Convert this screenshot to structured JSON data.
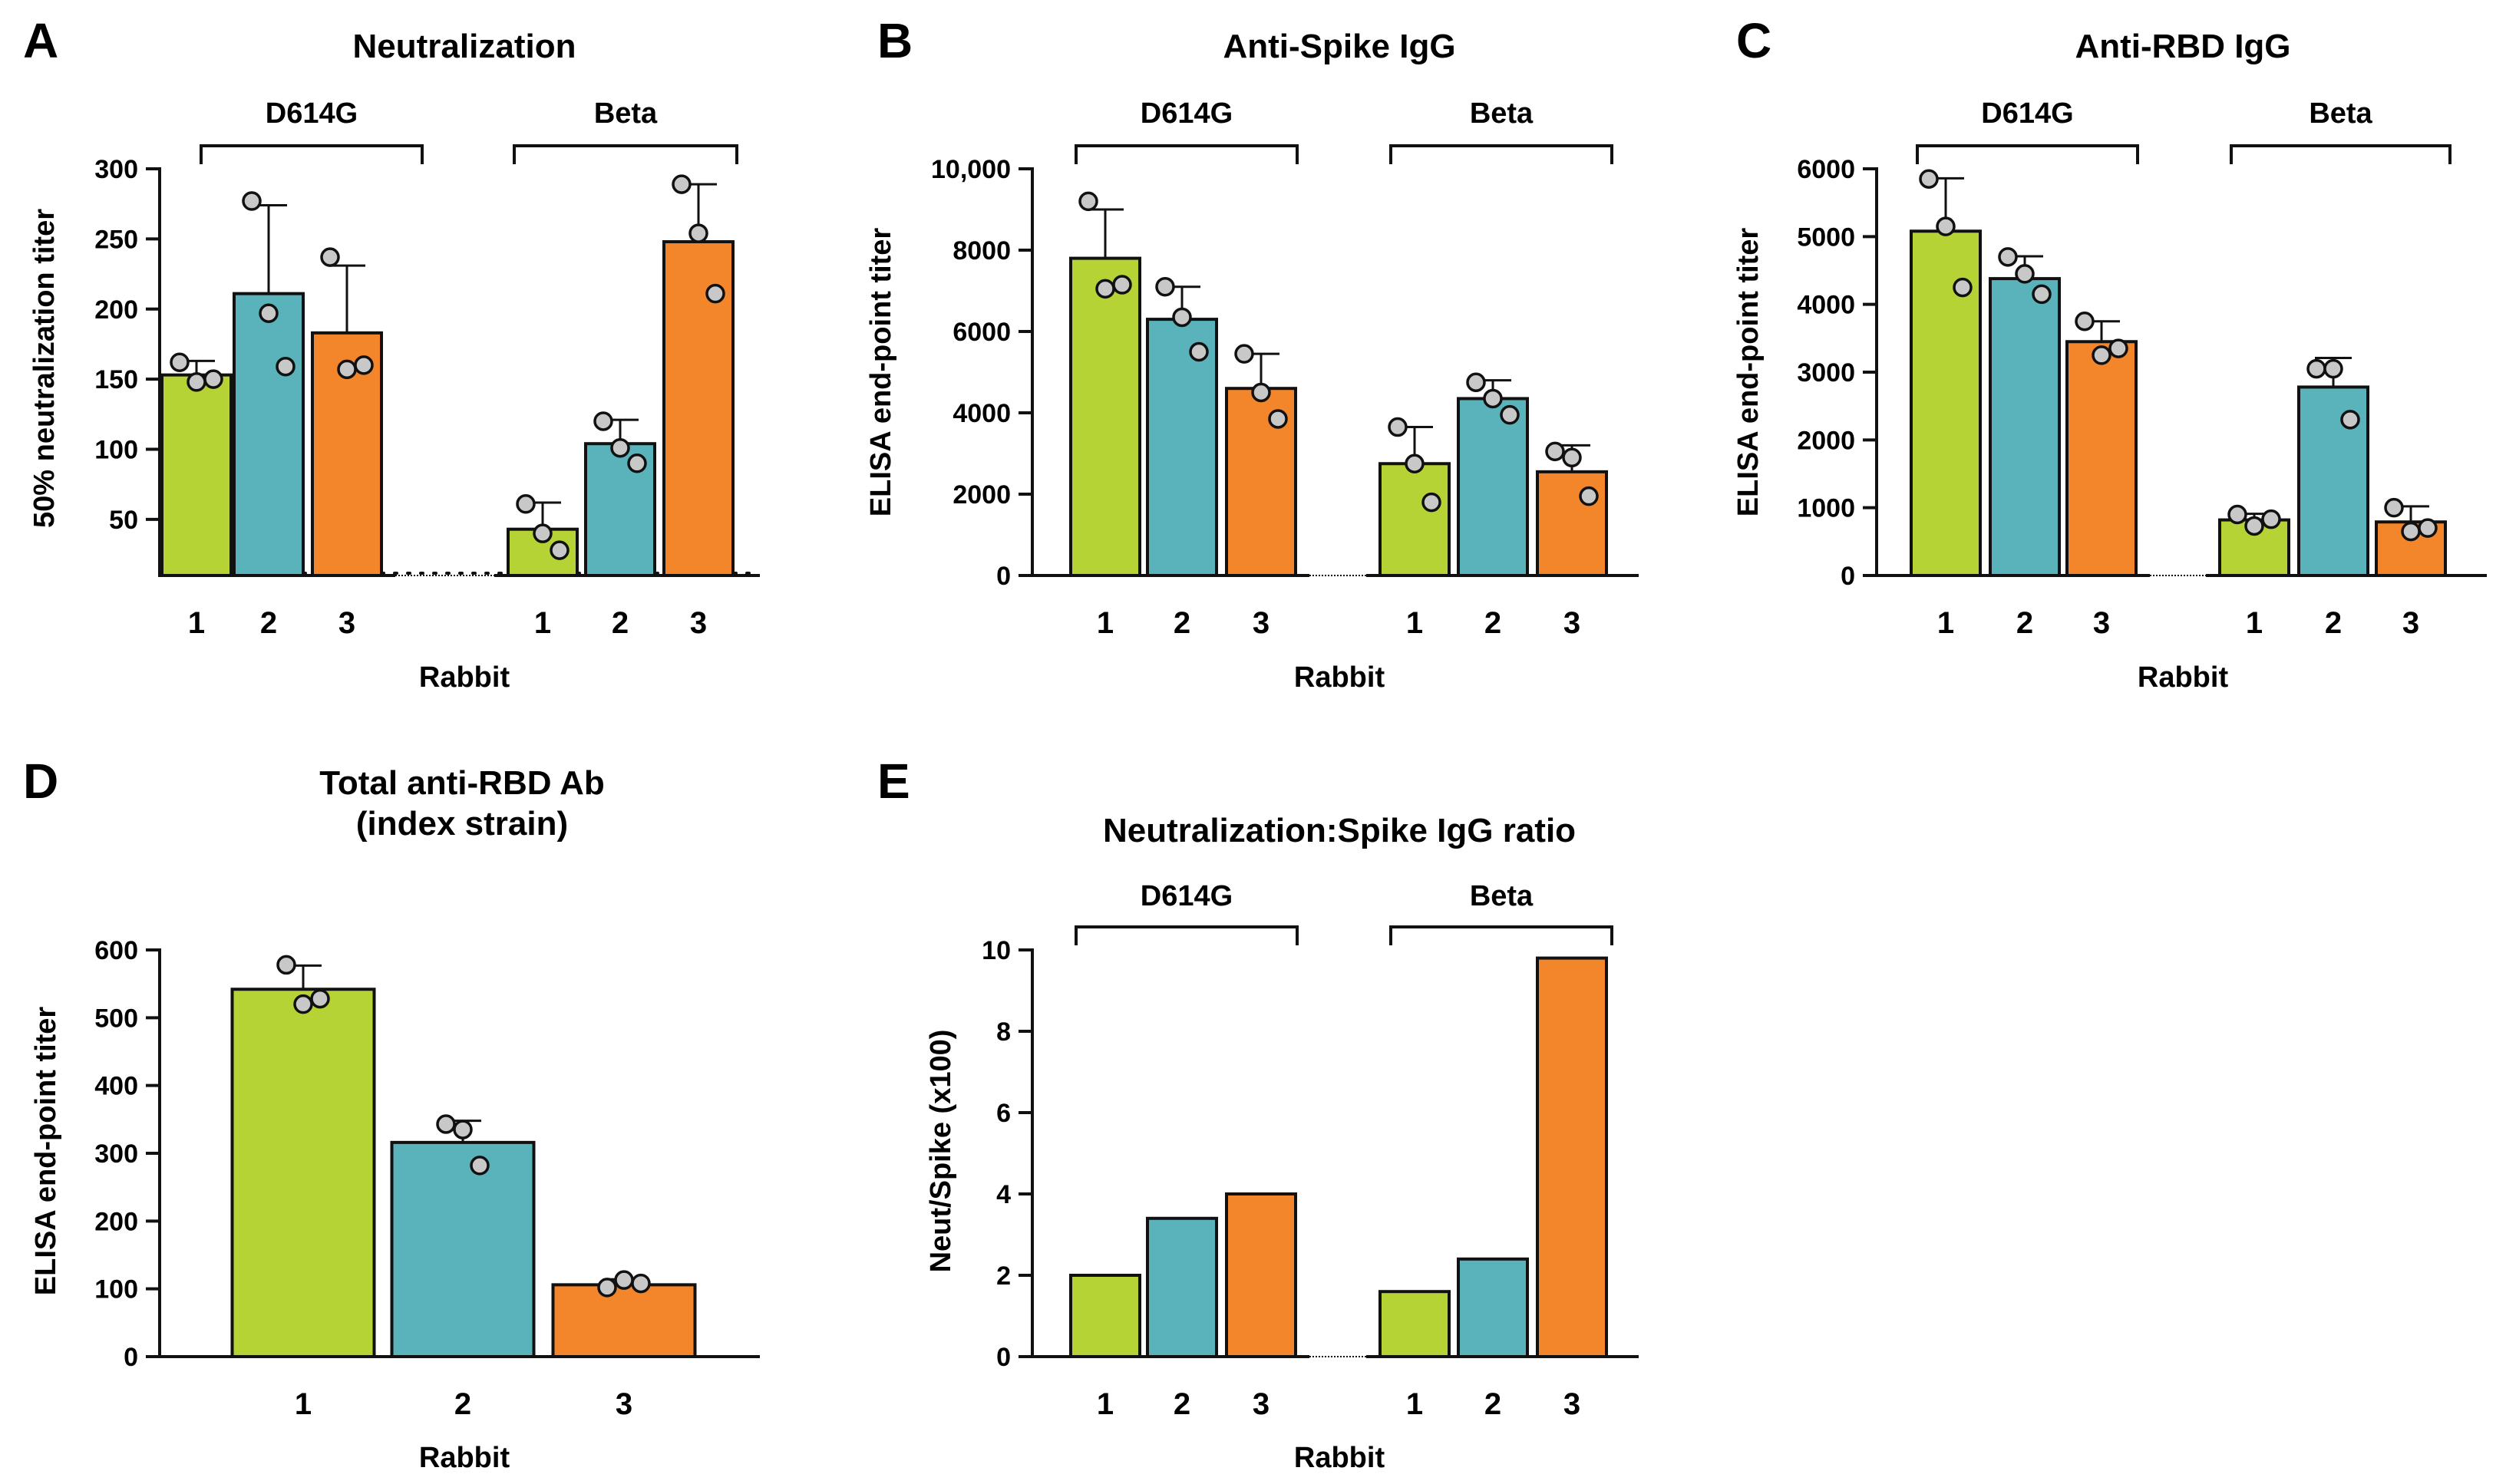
{
  "colors": {
    "rabbit1": "#b5d334",
    "rabbit2": "#5ab3bb",
    "rabbit3": "#f3862a",
    "dot": "#c8c8c8",
    "stroke": "#111111"
  },
  "chart_data": [
    {
      "panel": "A",
      "type": "bar",
      "title": "Neutralization",
      "xlabel": "Rabbit",
      "ylabel": "50% neutralization titer",
      "ylim": [
        10,
        300
      ],
      "yticks": [
        50,
        100,
        150,
        200,
        250,
        300
      ],
      "ytick_labels": [
        "50",
        "100",
        "150",
        "200",
        "250",
        "300"
      ],
      "dotted_line": 10,
      "groups": [
        "D614G",
        "Beta"
      ],
      "categories": [
        "1",
        "2",
        "3"
      ],
      "series": [
        {
          "group": "D614G",
          "bars": [
            {
              "rabbit": "1",
              "mean": 153,
              "err": 10,
              "points": [
                162,
                148,
                150
              ]
            },
            {
              "rabbit": "2",
              "mean": 211,
              "err": 63,
              "points": [
                277,
                197,
                159
              ]
            },
            {
              "rabbit": "3",
              "mean": 183,
              "err": 48,
              "points": [
                237,
                157,
                160
              ]
            }
          ]
        },
        {
          "group": "Beta",
          "bars": [
            {
              "rabbit": "1",
              "mean": 43,
              "err": 19,
              "points": [
                61,
                40,
                28
              ]
            },
            {
              "rabbit": "2",
              "mean": 104,
              "err": 17,
              "points": [
                120,
                101,
                90
              ]
            },
            {
              "rabbit": "3",
              "mean": 248,
              "err": 41,
              "points": [
                289,
                254,
                211
              ]
            }
          ]
        }
      ]
    },
    {
      "panel": "B",
      "type": "bar",
      "title": "Anti-Spike IgG",
      "xlabel": "Rabbit",
      "ylabel": "ELISA end-point titer",
      "ylim": [
        0,
        10000
      ],
      "yticks": [
        0,
        2000,
        4000,
        6000,
        8000,
        10000
      ],
      "ytick_labels": [
        "0",
        "2000",
        "4000",
        "6000",
        "8000",
        "10,000"
      ],
      "groups": [
        "D614G",
        "Beta"
      ],
      "categories": [
        "1",
        "2",
        "3"
      ],
      "series": [
        {
          "group": "D614G",
          "bars": [
            {
              "rabbit": "1",
              "mean": 7800,
              "err": 1200,
              "points": [
                9200,
                7050,
                7150
              ]
            },
            {
              "rabbit": "2",
              "mean": 6300,
              "err": 800,
              "points": [
                7100,
                6350,
                5500
              ]
            },
            {
              "rabbit": "3",
              "mean": 4600,
              "err": 850,
              "points": [
                5450,
                4500,
                3850
              ]
            }
          ]
        },
        {
          "group": "Beta",
          "bars": [
            {
              "rabbit": "1",
              "mean": 2750,
              "err": 900,
              "points": [
                3650,
                2750,
                1800
              ]
            },
            {
              "rabbit": "2",
              "mean": 4350,
              "err": 450,
              "points": [
                4750,
                4350,
                3950
              ]
            },
            {
              "rabbit": "3",
              "mean": 2550,
              "err": 650,
              "points": [
                3050,
                2900,
                1950
              ]
            }
          ]
        }
      ]
    },
    {
      "panel": "C",
      "type": "bar",
      "title": "Anti-RBD IgG",
      "xlabel": "Rabbit",
      "ylabel": "ELISA end-point titer",
      "ylim": [
        0,
        6000
      ],
      "yticks": [
        0,
        1000,
        2000,
        3000,
        4000,
        5000,
        6000
      ],
      "ytick_labels": [
        "0",
        "1000",
        "2000",
        "3000",
        "4000",
        "5000",
        "6000"
      ],
      "groups": [
        "D614G",
        "Beta"
      ],
      "categories": [
        "1",
        "2",
        "3"
      ],
      "series": [
        {
          "group": "D614G",
          "bars": [
            {
              "rabbit": "1",
              "mean": 5080,
              "err": 780,
              "points": [
                5850,
                5150,
                4250
              ]
            },
            {
              "rabbit": "2",
              "mean": 4380,
              "err": 330,
              "points": [
                4700,
                4450,
                4150
              ]
            },
            {
              "rabbit": "3",
              "mean": 3450,
              "err": 300,
              "points": [
                3750,
                3250,
                3350
              ]
            }
          ]
        },
        {
          "group": "Beta",
          "bars": [
            {
              "rabbit": "1",
              "mean": 820,
              "err": 90,
              "points": [
                900,
                730,
                830
              ]
            },
            {
              "rabbit": "2",
              "mean": 2780,
              "err": 430,
              "points": [
                3050,
                3050,
                2300
              ]
            },
            {
              "rabbit": "3",
              "mean": 790,
              "err": 230,
              "points": [
                1000,
                650,
                700
              ]
            }
          ]
        }
      ]
    },
    {
      "panel": "D",
      "type": "bar",
      "title": [
        "Total anti-RBD Ab",
        "(index strain)"
      ],
      "xlabel": "Rabbit",
      "ylabel": "ELISA end-point titer",
      "ylim": [
        0,
        600
      ],
      "yticks": [
        0,
        100,
        200,
        300,
        400,
        500,
        600
      ],
      "ytick_labels": [
        "0",
        "100",
        "200",
        "300",
        "400",
        "500",
        "600"
      ],
      "groups": [],
      "categories": [
        "1",
        "2",
        "3"
      ],
      "series": [
        {
          "group": "",
          "bars": [
            {
              "rabbit": "1",
              "mean": 542,
              "err": 35,
              "points": [
                578,
                520,
                528
              ]
            },
            {
              "rabbit": "2",
              "mean": 316,
              "err": 32,
              "points": [
                343,
                335,
                282
              ]
            },
            {
              "rabbit": "3",
              "mean": 106,
              "err": 8,
              "points": [
                102,
                113,
                108
              ]
            }
          ]
        }
      ]
    },
    {
      "panel": "E",
      "type": "bar",
      "title": "Neutralization:Spike IgG ratio",
      "xlabel": "Rabbit",
      "ylabel": "Neut/Spike (x100)",
      "ylim": [
        0,
        10
      ],
      "yticks": [
        0,
        2,
        4,
        6,
        8,
        10
      ],
      "ytick_labels": [
        "0",
        "2",
        "4",
        "6",
        "8",
        "10"
      ],
      "groups": [
        "D614G",
        "Beta"
      ],
      "categories": [
        "1",
        "2",
        "3"
      ],
      "series": [
        {
          "group": "D614G",
          "bars": [
            {
              "rabbit": "1",
              "mean": 2.0
            },
            {
              "rabbit": "2",
              "mean": 3.4
            },
            {
              "rabbit": "3",
              "mean": 4.0
            }
          ]
        },
        {
          "group": "Beta",
          "bars": [
            {
              "rabbit": "1",
              "mean": 1.6
            },
            {
              "rabbit": "2",
              "mean": 2.4
            },
            {
              "rabbit": "3",
              "mean": 9.8
            }
          ]
        }
      ]
    }
  ]
}
